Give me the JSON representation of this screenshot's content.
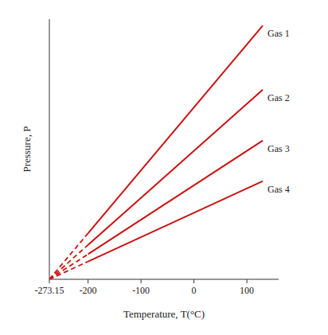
{
  "chart_data": {
    "type": "line",
    "xlabel": "Temperature, T(°C)",
    "ylabel": "Pressure, P",
    "color": "#cc1111",
    "xlim": [
      -273.15,
      160
    ],
    "ylim": [
      0,
      1.55
    ],
    "xticks": [
      -273.15,
      -200,
      -100,
      0,
      100
    ],
    "tick_labels": "x",
    "grid": false,
    "series": [
      {
        "x": [
          -273.15,
          -200
        ],
        "values": [
          0,
          0.2743125
        ],
        "line_style": "dashed"
      },
      {
        "name": "Gas 1",
        "x": [
          -200,
          130
        ],
        "values": [
          0.2743125,
          1.5118125
        ],
        "line_style": "solid"
      },
      {
        "x": [
          -273.15,
          -200
        ],
        "values": [
          0,
          0.20482
        ],
        "line_style": "dashed"
      },
      {
        "name": "Gas 2",
        "x": [
          -200,
          130
        ],
        "values": [
          0.20482,
          1.12882
        ],
        "line_style": "solid"
      },
      {
        "x": [
          -273.15,
          -200
        ],
        "values": [
          0,
          0.1499575
        ],
        "line_style": "dashed"
      },
      {
        "name": "Gas 3",
        "x": [
          -200,
          130
        ],
        "values": [
          0.1499575,
          0.8264575
        ],
        "line_style": "solid"
      },
      {
        "x": [
          -273.15,
          -200
        ],
        "values": [
          0,
          0.1060675
        ],
        "line_style": "dashed"
      },
      {
        "name": "Gas 4",
        "x": [
          -200,
          130
        ],
        "values": [
          0.1060675,
          0.5845675
        ],
        "line_style": "solid"
      }
    ]
  }
}
